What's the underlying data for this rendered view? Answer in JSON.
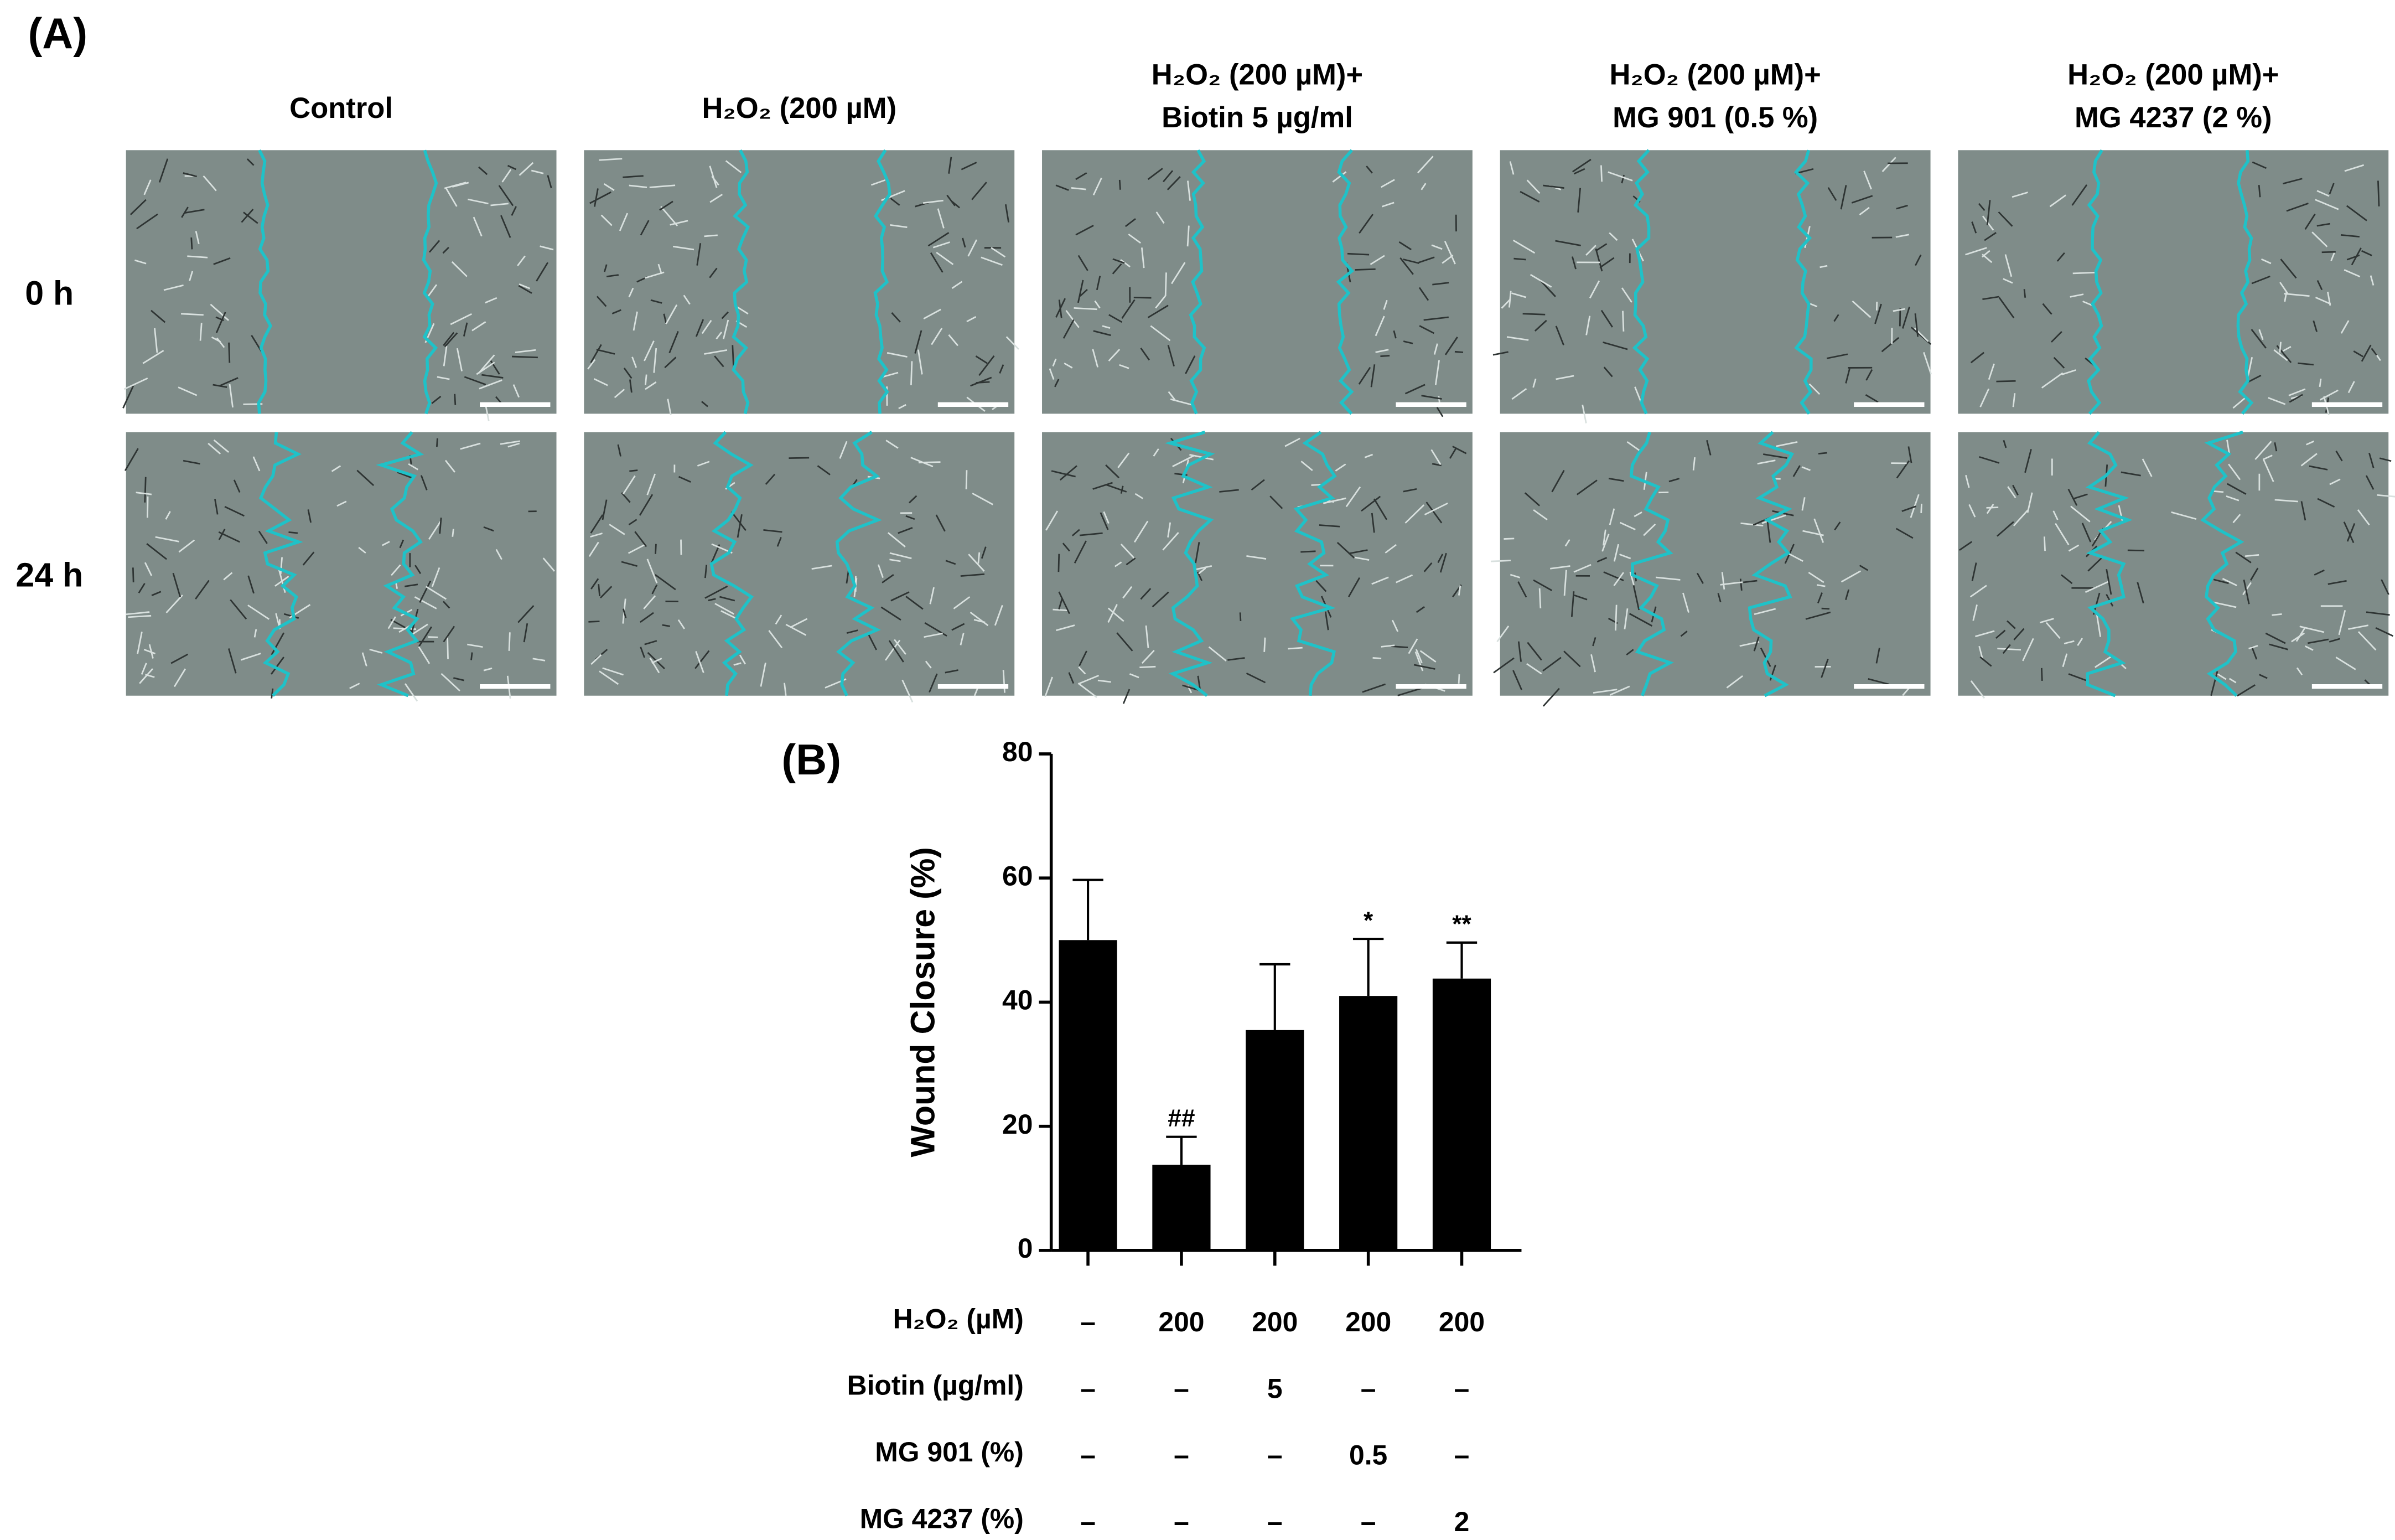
{
  "panel_a": {
    "label": "(A)",
    "columns": [
      [
        "Control"
      ],
      [
        "H₂O₂ (200 µM)"
      ],
      [
        "H₂O₂ (200 µM)+",
        "Biotin 5 µg/ml"
      ],
      [
        "H₂O₂ (200 µM)+",
        "MG 901 (0.5 %)"
      ],
      [
        "H₂O₂ (200 µM)+",
        "MG 4237 (2 %)"
      ]
    ],
    "rows": [
      "0 h",
      "24 h"
    ]
  },
  "chart_data": {
    "type": "bar",
    "panel_label": "(B)",
    "y_label": "Wound Closure (%)",
    "categories": [
      null,
      null,
      null,
      null,
      null
    ],
    "values": [
      50,
      13.8,
      35.5,
      41,
      43.8
    ],
    "errors": [
      9.7,
      4.5,
      10.6,
      9.2,
      5.8
    ],
    "annotations": [
      null,
      "##",
      null,
      "*",
      "**"
    ],
    "color": "#000000",
    "ylim": [
      0,
      80
    ],
    "yticks": [
      0,
      20,
      40,
      60,
      80
    ],
    "conditions": [
      {
        "label": "H₂O₂ (µM)",
        "values": [
          "–",
          "200",
          "200",
          "200",
          "200"
        ]
      },
      {
        "label": "Biotin (µg/ml)",
        "values": [
          "–",
          "–",
          "5",
          "–",
          "–"
        ]
      },
      {
        "label": "MG 901 (%)",
        "values": [
          "–",
          "–",
          "–",
          "0.5",
          "–"
        ]
      },
      {
        "label": "MG 4237 (%)",
        "values": [
          "–",
          "–",
          "–",
          "–",
          "2"
        ]
      }
    ]
  }
}
